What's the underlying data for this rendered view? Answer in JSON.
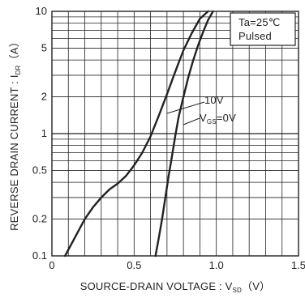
{
  "chart_data": {
    "type": "line",
    "xlabel_main": "SOURCE-DRAIN VOLTAGE : V",
    "xlabel_sub": "SD",
    "xlabel_unit": "（V）",
    "ylabel_main": "REVERSE DRAIN CURRENT : I",
    "ylabel_sub": "DR",
    "ylabel_unit": "（A）",
    "xlim": [
      0,
      1.5
    ],
    "ylim": [
      0.1,
      10
    ],
    "yscale": "log",
    "grid": true,
    "x_ticks": [
      {
        "value": 0,
        "label": "0"
      },
      {
        "value": 0.5,
        "label": "0.5"
      },
      {
        "value": 1.0,
        "label": "1.0"
      },
      {
        "value": 1.5,
        "label": "1.5"
      }
    ],
    "y_ticks": [
      {
        "value": 0.1,
        "label": "0.1"
      },
      {
        "value": 0.2,
        "label": "0.2"
      },
      {
        "value": 0.5,
        "label": "0.5"
      },
      {
        "value": 1,
        "label": "1"
      },
      {
        "value": 2,
        "label": "2"
      },
      {
        "value": 5,
        "label": "5"
      },
      {
        "value": 10,
        "label": "10"
      }
    ],
    "legend_box": {
      "line1": "Ta=25℃",
      "line2": "Pulsed",
      "placement": "top-right"
    },
    "series": [
      {
        "label_main": "10V",
        "x": [
          0.08,
          0.15,
          0.2,
          0.25,
          0.3,
          0.35,
          0.4,
          0.45,
          0.5,
          0.55,
          0.6,
          0.65,
          0.7,
          0.75,
          0.8,
          0.85,
          0.9,
          0.95
        ],
        "y": [
          0.1,
          0.15,
          0.2,
          0.25,
          0.3,
          0.35,
          0.39,
          0.45,
          0.55,
          0.7,
          0.95,
          1.4,
          2.1,
          3.2,
          4.8,
          6.6,
          8.7,
          10
        ]
      },
      {
        "label_main": "V",
        "label_sub": "GS",
        "label_tail": "=0V",
        "x": [
          0.63,
          0.65,
          0.67,
          0.69,
          0.71,
          0.73,
          0.75,
          0.77,
          0.8,
          0.83,
          0.86,
          0.89,
          0.92,
          0.95,
          0.98
        ],
        "y": [
          0.1,
          0.14,
          0.2,
          0.3,
          0.45,
          0.65,
          0.95,
          1.35,
          2.0,
          2.9,
          4.0,
          5.3,
          6.8,
          8.5,
          10
        ]
      }
    ]
  }
}
